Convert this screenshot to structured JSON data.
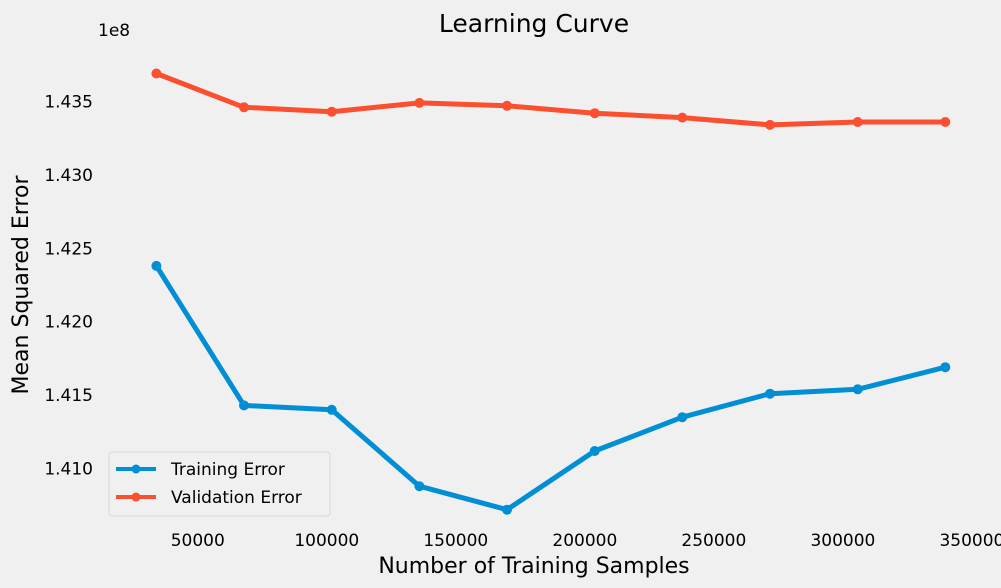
{
  "chart_data": {
    "type": "line",
    "title": "Learning Curve",
    "xlabel": "Number of Training Samples",
    "ylabel": "Mean Squared Error",
    "y_offset_label": "1e8",
    "xlim": [
      16000,
      357000
    ],
    "ylim": [
      1.4065,
      1.4385
    ],
    "x_ticks": [
      50000,
      100000,
      150000,
      200000,
      250000,
      300000,
      350000
    ],
    "x_tick_labels": [
      "50000",
      "100000",
      "150000",
      "200000",
      "250000",
      "300000",
      "350000"
    ],
    "y_ticks": [
      1.41,
      1.415,
      1.42,
      1.425,
      1.43,
      1.435
    ],
    "y_tick_labels": [
      "1.410",
      "1.415",
      "1.420",
      "1.425",
      "1.430",
      "1.435"
    ],
    "grid": false,
    "legend_position": "lower-left",
    "x": [
      33969,
      67938,
      101907,
      135876,
      169845,
      203814,
      237783,
      271752,
      305721,
      339690
    ],
    "series": [
      {
        "name": "Training Error",
        "color": "#008fd5",
        "values": [
          1.4238,
          1.4143,
          1.414,
          1.4088,
          1.4072,
          1.4112,
          1.4135,
          1.4151,
          1.4154,
          1.4169
        ]
      },
      {
        "name": "Validation Error",
        "color": "#fc4f30",
        "values": [
          1.4369,
          1.4346,
          1.4343,
          1.4349,
          1.4347,
          1.4342,
          1.4339,
          1.4334,
          1.4336,
          1.4336
        ]
      }
    ]
  }
}
